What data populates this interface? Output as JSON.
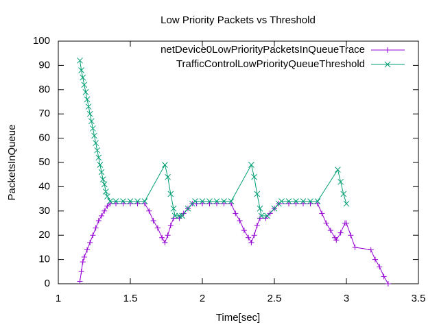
{
  "chart_data": {
    "type": "line",
    "title": "Low Priority Packets vs Threshold",
    "xlabel": "Time[sec]",
    "ylabel": "PacketsInQueue",
    "xlim": [
      1,
      3.5
    ],
    "xticks": [
      1,
      1.5,
      2,
      2.5,
      3,
      3.5
    ],
    "ylim": [
      0,
      100
    ],
    "yticks": [
      0,
      10,
      20,
      30,
      40,
      50,
      60,
      70,
      80,
      90,
      100
    ],
    "grid": false,
    "legend": "top-right",
    "series": [
      {
        "name": "netDevice0LowPriorityPacketsInQueueTrace",
        "color": "#9400d3",
        "marker": "plus",
        "x": [
          1.15,
          1.16,
          1.17,
          1.18,
          1.2,
          1.22,
          1.24,
          1.26,
          1.28,
          1.3,
          1.32,
          1.34,
          1.36,
          1.4,
          1.45,
          1.5,
          1.55,
          1.6,
          1.63,
          1.66,
          1.69,
          1.72,
          1.74,
          1.76,
          1.78,
          1.8,
          1.84,
          1.87,
          1.9,
          1.93,
          1.96,
          2.0,
          2.05,
          2.1,
          2.15,
          2.2,
          2.23,
          2.26,
          2.29,
          2.32,
          2.34,
          2.36,
          2.38,
          2.4,
          2.44,
          2.47,
          2.5,
          2.53,
          2.6,
          2.65,
          2.7,
          2.75,
          2.8,
          2.83,
          2.86,
          2.89,
          2.92,
          2.93,
          2.96,
          2.99,
          3.0,
          3.03,
          3.06,
          3.17,
          3.2,
          3.23,
          3.26,
          3.29
        ],
        "values": [
          1,
          5,
          9,
          11,
          14,
          17,
          20,
          23,
          26,
          28,
          30,
          32,
          33,
          33,
          33,
          33,
          33,
          33,
          30,
          26,
          23,
          19,
          17,
          20,
          24,
          27,
          27,
          29,
          31,
          33,
          33,
          33,
          33,
          33,
          33,
          33,
          29,
          26,
          22,
          19,
          17,
          20,
          24,
          27,
          27,
          29,
          31,
          33,
          33,
          33,
          33,
          33,
          33,
          29,
          25,
          22,
          19,
          18,
          21,
          25,
          25,
          20,
          15,
          14,
          10,
          7,
          3,
          0
        ]
      },
      {
        "name": "TrafficControlLowPriorityQueueThreshold",
        "color": "#009e73",
        "marker": "cross",
        "x": [
          1.15,
          1.16,
          1.17,
          1.18,
          1.19,
          1.2,
          1.21,
          1.22,
          1.23,
          1.24,
          1.25,
          1.26,
          1.27,
          1.28,
          1.29,
          1.3,
          1.31,
          1.32,
          1.33,
          1.34,
          1.36,
          1.4,
          1.45,
          1.5,
          1.55,
          1.6,
          1.74,
          1.76,
          1.78,
          1.8,
          1.81,
          1.84,
          1.86,
          1.9,
          1.93,
          1.95,
          2.0,
          2.05,
          2.1,
          2.15,
          2.2,
          2.34,
          2.36,
          2.38,
          2.4,
          2.41,
          2.45,
          2.5,
          2.53,
          2.55,
          2.6,
          2.65,
          2.7,
          2.75,
          2.8,
          2.94,
          2.96,
          2.98,
          3.0
        ],
        "values": [
          92,
          88,
          85,
          82,
          79,
          76,
          73,
          70,
          67,
          64,
          61,
          58,
          55,
          52,
          49,
          46,
          43,
          41,
          38,
          36,
          34,
          34,
          34,
          34,
          34,
          34,
          49,
          44,
          37,
          31,
          28,
          28,
          28,
          31,
          33,
          34,
          34,
          34,
          34,
          34,
          34,
          49,
          44,
          37,
          31,
          28,
          28,
          31,
          33,
          34,
          34,
          34,
          34,
          34,
          34,
          47,
          42,
          37,
          33
        ]
      }
    ]
  }
}
